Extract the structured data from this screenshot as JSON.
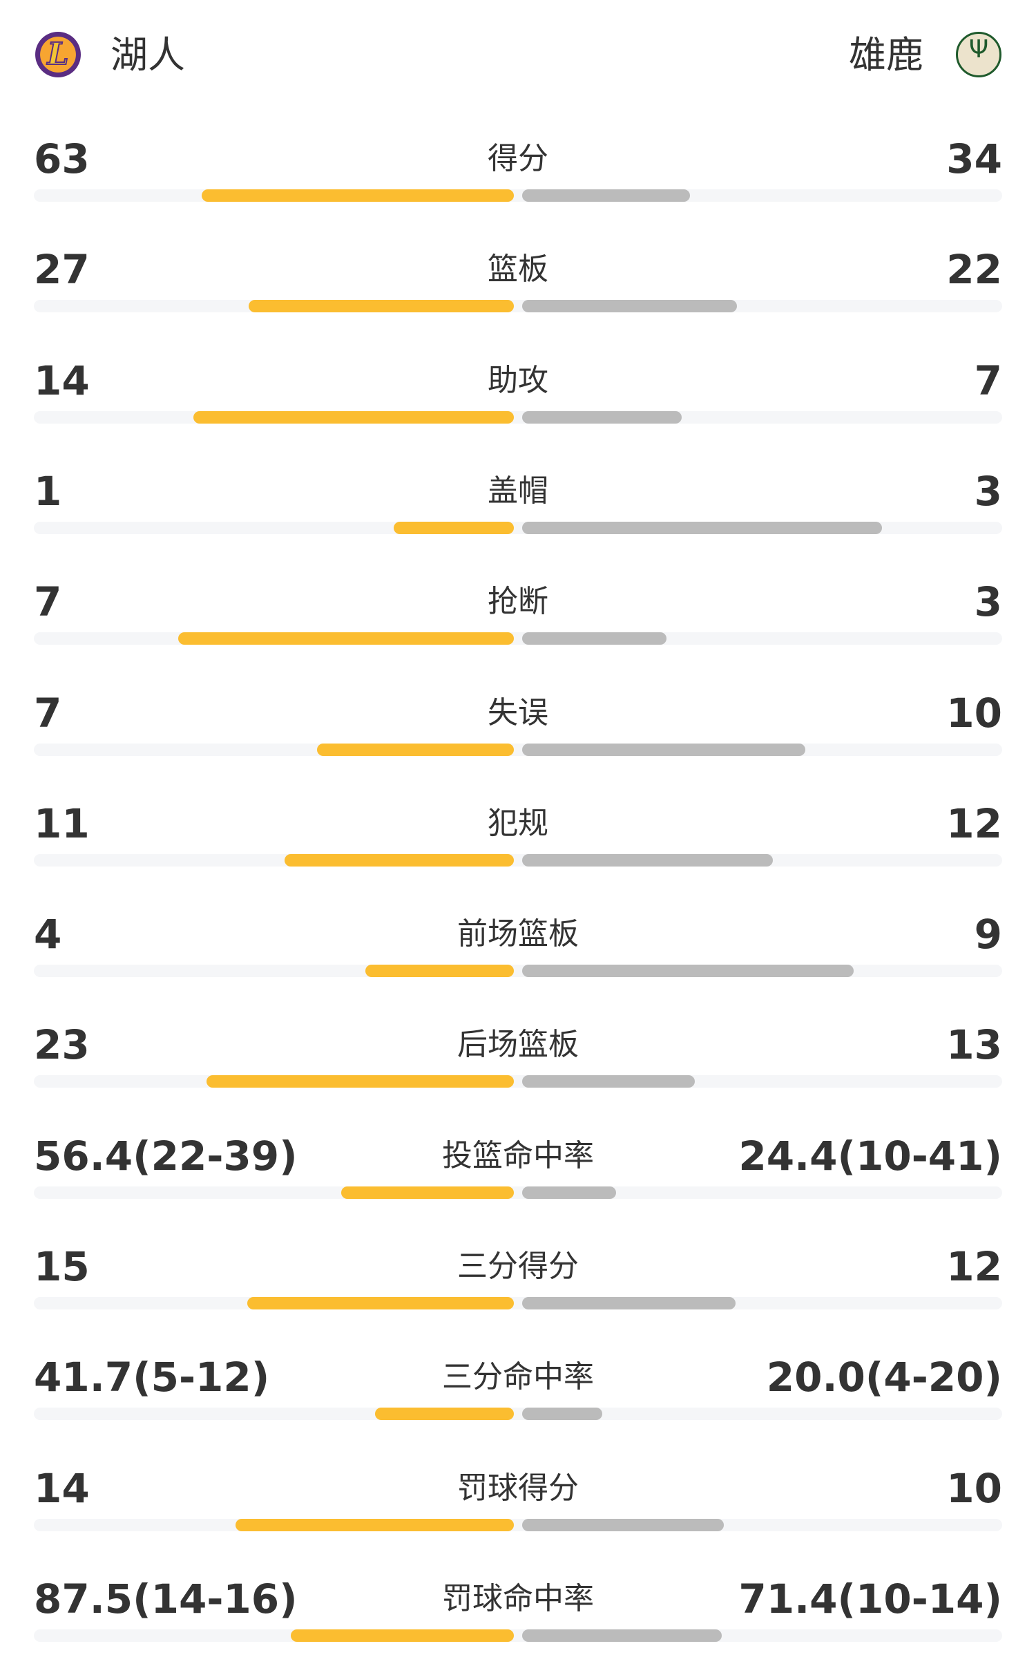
{
  "header": {
    "home": {
      "name": "湖人",
      "logo": "lakers-logo",
      "logo_text": "L"
    },
    "away": {
      "name": "雄鹿",
      "logo": "bucks-logo",
      "logo_text": "Ψ"
    }
  },
  "colors": {
    "home_bar": "#fbbd30",
    "away_bar": "#bbbbbb",
    "track": "#f5f6f8"
  },
  "stats": [
    {
      "label": "得分",
      "home": "63",
      "away": "34",
      "home_fill": 0.65,
      "away_fill": 0.35
    },
    {
      "label": "篮板",
      "home": "27",
      "away": "22",
      "home_fill": 0.553,
      "away_fill": 0.447
    },
    {
      "label": "助攻",
      "home": "14",
      "away": "7",
      "home_fill": 0.667,
      "away_fill": 0.333
    },
    {
      "label": "盖帽",
      "home": "1",
      "away": "3",
      "home_fill": 0.25,
      "away_fill": 0.75
    },
    {
      "label": "抢断",
      "home": "7",
      "away": "3",
      "home_fill": 0.7,
      "away_fill": 0.3
    },
    {
      "label": "失误",
      "home": "7",
      "away": "10",
      "home_fill": 0.41,
      "away_fill": 0.59
    },
    {
      "label": "犯规",
      "home": "11",
      "away": "12",
      "home_fill": 0.478,
      "away_fill": 0.522
    },
    {
      "label": "前场篮板",
      "home": "4",
      "away": "9",
      "home_fill": 0.31,
      "away_fill": 0.69
    },
    {
      "label": "后场篮板",
      "home": "23",
      "away": "13",
      "home_fill": 0.64,
      "away_fill": 0.36
    },
    {
      "label": "投篮命中率",
      "home": "56.4(22-39)",
      "away": "24.4(10-41)",
      "home_fill": 0.36,
      "away_fill": 0.196
    },
    {
      "label": "三分得分",
      "home": "15",
      "away": "12",
      "home_fill": 0.555,
      "away_fill": 0.445
    },
    {
      "label": "三分命中率",
      "home": "41.7(5-12)",
      "away": "20.0(4-20)",
      "home_fill": 0.29,
      "away_fill": 0.167
    },
    {
      "label": "罚球得分",
      "home": "14",
      "away": "10",
      "home_fill": 0.58,
      "away_fill": 0.42
    },
    {
      "label": "罚球命中率",
      "home": "87.5(14-16)",
      "away": "71.4(10-14)",
      "home_fill": 0.465,
      "away_fill": 0.416
    }
  ]
}
